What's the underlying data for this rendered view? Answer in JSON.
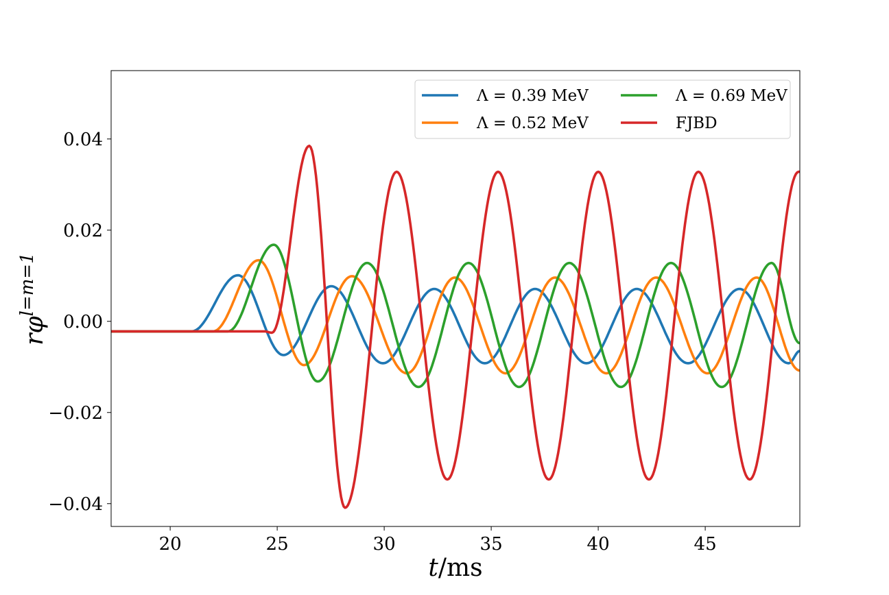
{
  "chart_data": {
    "type": "line",
    "xlabel": "t/ms",
    "ylabel": "rφ^{l=m=1}",
    "ylabel_base": "rφ",
    "ylabel_sup": "l=m=1",
    "xlim": [
      17.24,
      49.42
    ],
    "ylim": [
      -0.045,
      0.055
    ],
    "xticks": [
      20,
      25,
      30,
      35,
      40,
      45
    ],
    "xtick_labels": [
      "20",
      "25",
      "30",
      "35",
      "40",
      "45"
    ],
    "yticks": [
      0.04,
      0.02,
      0.0,
      -0.02,
      -0.04
    ],
    "ytick_labels": [
      "0.04",
      "0.02",
      "0.00",
      "−0.02",
      "−0.04"
    ],
    "grid": false,
    "legend_placement": "top-right",
    "legend_columns": 2,
    "series": [
      {
        "name": "Λ = 0.39 MeV",
        "color": "#1f77b4",
        "x": [
          17.24,
          21.0,
          23.17,
          25.29,
          27.53,
          29.94,
          32.34,
          34.7,
          37.05,
          39.45,
          41.8,
          44.2,
          46.6,
          48.9,
          49.42
        ],
        "y": [
          -0.0022,
          -0.0022,
          0.0101,
          -0.0074,
          0.0077,
          -0.0092,
          0.0071,
          -0.0092,
          0.0071,
          -0.0092,
          0.0071,
          -0.0092,
          0.0071,
          -0.0092,
          -0.0065
        ]
      },
      {
        "name": "Λ = 0.52 MeV",
        "color": "#ff7f0e",
        "x": [
          17.24,
          22.0,
          24.13,
          26.25,
          28.49,
          31.06,
          33.3,
          35.67,
          37.98,
          40.38,
          42.7,
          45.1,
          47.4,
          49.42
        ],
        "y": [
          -0.0022,
          -0.0022,
          0.0134,
          -0.0096,
          0.0099,
          -0.0114,
          0.0096,
          -0.0114,
          0.0096,
          -0.0114,
          0.0096,
          -0.0114,
          0.0096,
          -0.0108
        ]
      },
      {
        "name": "Λ = 0.69 MeV",
        "color": "#2ca02c",
        "x": [
          17.24,
          22.7,
          24.84,
          26.89,
          29.2,
          31.6,
          33.94,
          36.3,
          38.65,
          41.06,
          43.4,
          45.77,
          48.1,
          49.42
        ],
        "y": [
          -0.0022,
          -0.0022,
          0.0168,
          -0.0132,
          0.0128,
          -0.0144,
          0.0128,
          -0.0144,
          0.0128,
          -0.0144,
          0.0128,
          -0.0144,
          0.0128,
          -0.0048
        ]
      },
      {
        "name": "FJBD",
        "color": "#d62728",
        "x": [
          17.24,
          24.4,
          24.75,
          26.5,
          28.17,
          30.58,
          32.95,
          35.32,
          37.69,
          40.0,
          42.37,
          44.68,
          47.08,
          49.36,
          49.42
        ],
        "y": [
          -0.0022,
          -0.0022,
          -0.0025,
          0.0385,
          -0.0409,
          0.0328,
          -0.0347,
          0.0328,
          -0.0347,
          0.0328,
          -0.0347,
          0.0328,
          -0.0347,
          0.0328,
          0.0328
        ]
      }
    ]
  }
}
